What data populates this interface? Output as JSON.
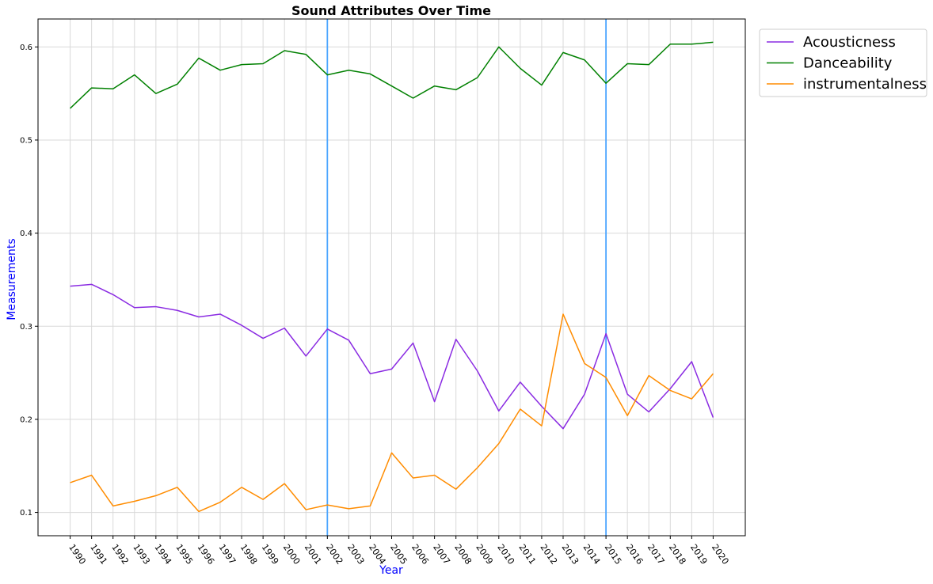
{
  "chart_data": {
    "type": "line",
    "title": "Sound Attributes Over Time",
    "xlabel": "Year",
    "ylabel": "Measurements",
    "x": [
      1990,
      1991,
      1992,
      1993,
      1994,
      1995,
      1996,
      1997,
      1998,
      1999,
      2000,
      2001,
      2002,
      2003,
      2004,
      2005,
      2006,
      2007,
      2008,
      2009,
      2010,
      2011,
      2012,
      2013,
      2014,
      2015,
      2016,
      2017,
      2018,
      2019,
      2020
    ],
    "x_tick_labels": [
      "1990",
      "1991",
      "1992",
      "1993",
      "1994",
      "1995",
      "1996",
      "1997",
      "1998",
      "1999",
      "2000",
      "2001",
      "2002",
      "2003",
      "2004",
      "2005",
      "2006",
      "2007",
      "2008",
      "2009",
      "2010",
      "2011",
      "2012",
      "2013",
      "2014",
      "2015",
      "2016",
      "2017",
      "2018",
      "2019",
      "2020"
    ],
    "y_ticks": [
      0.1,
      0.2,
      0.3,
      0.4,
      0.5,
      0.6
    ],
    "y_tick_labels": [
      "0.1",
      "0.2",
      "0.3",
      "0.4",
      "0.5",
      "0.6"
    ],
    "ylim": [
      0.075,
      0.63
    ],
    "xlim": [
      1988.5,
      2021.5
    ],
    "grid": true,
    "legend_position": "outside-top-right",
    "vertical_lines": [
      {
        "x": 2002,
        "color": "#4da6ff"
      },
      {
        "x": 2015,
        "color": "#4da6ff"
      }
    ],
    "series": [
      {
        "name": "Acousticness",
        "color": "#8a2be2",
        "values": [
          0.343,
          0.345,
          0.334,
          0.32,
          0.321,
          0.317,
          0.31,
          0.313,
          0.301,
          0.287,
          0.298,
          0.268,
          0.297,
          0.285,
          0.249,
          0.254,
          0.282,
          0.219,
          0.286,
          0.252,
          0.209,
          0.24,
          0.214,
          0.19,
          0.227,
          0.292,
          0.227,
          0.208,
          0.233,
          0.262,
          0.202
        ]
      },
      {
        "name": "Danceability",
        "color": "#008000",
        "values": [
          0.534,
          0.556,
          0.555,
          0.57,
          0.55,
          0.56,
          0.588,
          0.575,
          0.581,
          0.582,
          0.596,
          0.592,
          0.57,
          0.575,
          0.571,
          0.558,
          0.545,
          0.558,
          0.554,
          0.567,
          0.6,
          0.577,
          0.559,
          0.594,
          0.586,
          0.561,
          0.582,
          0.581,
          0.603,
          0.603,
          0.605
        ]
      },
      {
        "name": "instrumentalness",
        "color": "#ff8c00",
        "values": [
          0.132,
          0.14,
          0.107,
          0.112,
          0.118,
          0.127,
          0.101,
          0.111,
          0.127,
          0.114,
          0.131,
          0.103,
          0.108,
          0.104,
          0.107,
          0.164,
          0.137,
          0.14,
          0.125,
          0.148,
          0.174,
          0.211,
          0.193,
          0.313,
          0.26,
          0.245,
          0.204,
          0.247,
          0.231,
          0.222,
          0.249
        ]
      }
    ]
  }
}
